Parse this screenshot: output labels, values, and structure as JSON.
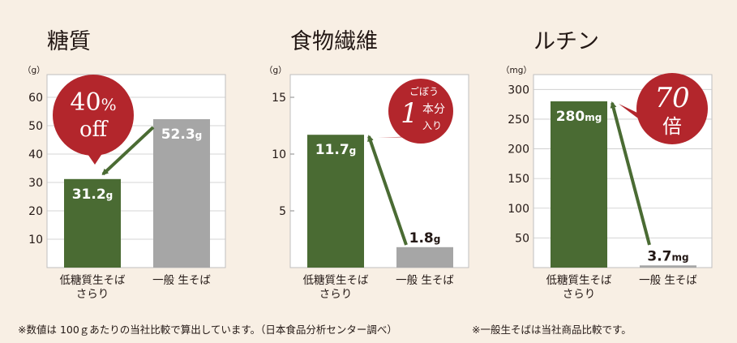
{
  "colors": {
    "background": "#f8efe4",
    "plot_bg": "#ffffff",
    "green": "#4a6b33",
    "gray": "#a6a6a6",
    "badge_red": "#b3262c",
    "grid": "#c9c9c9"
  },
  "footnotes": {
    "left": "※数値は 100ｇあたりの当社比較で算出しています。（日本食品分析センター調べ）",
    "right": "※一般生そばは当社商品比較です。"
  },
  "chart_data": [
    {
      "type": "bar",
      "title": "糖質",
      "unit": "（g）",
      "categories": [
        "低糖質生そばさらり",
        "一般 生そば"
      ],
      "category_lines": [
        [
          "低糖質生そば",
          "さらり"
        ],
        [
          "一般 生そば"
        ]
      ],
      "values": [
        31.2,
        52.3
      ],
      "value_labels": [
        {
          "num": "31.2",
          "unit": "g"
        },
        {
          "num": "52.3",
          "unit": "g"
        }
      ],
      "bar_colors": [
        "green",
        "gray"
      ],
      "ylim": [
        0,
        68
      ],
      "yticks": [
        10,
        20,
        30,
        40,
        50,
        60
      ],
      "grid": true,
      "arrow": "from bar 2 to bar 1",
      "badge": {
        "lines": [
          "40%",
          "off"
        ]
      }
    },
    {
      "type": "bar",
      "title": "食物繊維",
      "unit": "（g）",
      "categories": [
        "低糖質生そばさらり",
        "一般 生そば"
      ],
      "category_lines": [
        [
          "低糖質生そば",
          "さらり"
        ],
        [
          "一般 生そば"
        ]
      ],
      "values": [
        11.7,
        1.8
      ],
      "value_labels": [
        {
          "num": "11.7",
          "unit": "g"
        },
        {
          "num": "1.8",
          "unit": "g"
        }
      ],
      "bar_colors": [
        "green",
        "gray"
      ],
      "ylim": [
        0,
        17
      ],
      "yticks": [
        5,
        10,
        15
      ],
      "grid": false,
      "arrow": "from bar 2 to bar 1",
      "badge": {
        "lines": [
          "ごぼう",
          "1",
          "本分",
          "入り"
        ]
      }
    },
    {
      "type": "bar",
      "title": "ルチン",
      "unit": "（mg）",
      "categories": [
        "低糖質生そばさらり",
        "一般 生そば"
      ],
      "category_lines": [
        [
          "低糖質生そば",
          "さらり"
        ],
        [
          "一般 生そば"
        ]
      ],
      "values": [
        280,
        3.7
      ],
      "value_labels": [
        {
          "num": "280",
          "unit": "mg"
        },
        {
          "num": "3.7",
          "unit": "mg"
        }
      ],
      "bar_colors": [
        "green",
        "gray"
      ],
      "ylim": [
        0,
        325
      ],
      "yticks": [
        50,
        100,
        150,
        200,
        250,
        300
      ],
      "grid": true,
      "arrow": "from bar 2 to bar 1",
      "badge": {
        "lines": [
          "70",
          "倍"
        ]
      }
    }
  ]
}
